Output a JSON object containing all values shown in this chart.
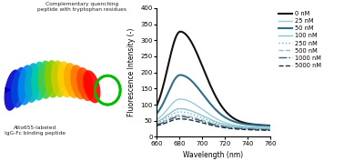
{
  "xlim": [
    660,
    760
  ],
  "ylim": [
    0,
    400
  ],
  "xlabel": "Wavelength (nm)",
  "ylabel": "Fluorescence Intensity (-)",
  "xticks": [
    660,
    680,
    700,
    720,
    740,
    760
  ],
  "yticks": [
    0,
    50,
    100,
    150,
    200,
    250,
    300,
    350,
    400
  ],
  "concentrations": [
    "0 nM",
    "25 nM",
    "50 nM",
    "100 nM",
    "250 nM",
    "500 nM",
    "1000 nM",
    "5000 nM"
  ],
  "peak_wavelength": 681,
  "peak_values": [
    330,
    120,
    195,
    90,
    80,
    70,
    65,
    58
  ],
  "baseline_left": [
    50,
    40,
    48,
    38,
    36,
    34,
    32,
    30
  ],
  "baseline_right": [
    35,
    28,
    34,
    26,
    24,
    23,
    22,
    20
  ],
  "line_colors": [
    "#111111",
    "#99ccd8",
    "#2e6e8a",
    "#88c4cc",
    "#7aaabb",
    "#99bbc8",
    "#3a6070",
    "#1a3040"
  ],
  "line_styles": [
    "-",
    "-",
    "-",
    "-",
    ":",
    "--",
    "-.",
    "--"
  ],
  "line_widths": [
    1.5,
    1.0,
    1.5,
    1.0,
    1.0,
    1.0,
    1.0,
    1.0
  ],
  "left_annotation_top": "Complementary quenching\npeptide with tryptophan residues",
  "left_annotation_bottom": "Atto655-labeled\nIgG-Fc binding peptide",
  "ribbon_colors_n_to_c": [
    "#0000cc",
    "#0044dd",
    "#0088ee",
    "#00aacc",
    "#00ccaa",
    "#44cc44",
    "#88cc00",
    "#cccc00",
    "#ffcc00",
    "#ffaa00",
    "#ff7700",
    "#ff4400",
    "#ff0000"
  ]
}
